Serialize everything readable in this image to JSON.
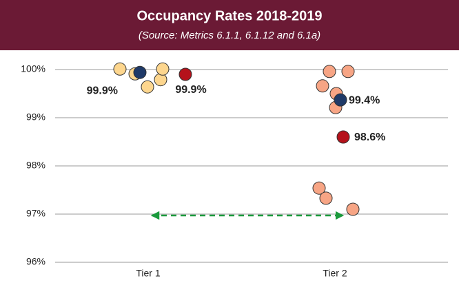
{
  "chart_data": {
    "type": "strip",
    "title": "Occupancy Rates 2018-2019",
    "subtitle": "(Source: Metrics 6.1.1, 6.1.12 and 6.1a)",
    "categories": [
      "Tier 1",
      "Tier 2"
    ],
    "series": [
      {
        "colors": [
          "#fdd68e",
          "#f7a585"
        ],
        "values": [
          [
            100.01,
            99.91,
            99.64,
            99.79,
            100.01
          ],
          [
            99.96,
            99.96,
            99.66,
            99.5,
            99.21,
            97.54,
            97.33,
            97.1
          ]
        ]
      },
      {
        "color": "#1f3a68",
        "values": [
          99.94,
          99.37
        ],
        "value_labels": [
          "99.9%",
          "99.4%"
        ]
      },
      {
        "color": "#b5121b",
        "values": [
          99.9,
          98.6
        ],
        "value_labels": [
          "99.9%",
          "98.6%"
        ]
      }
    ],
    "ylim": [
      96,
      100.2
    ],
    "yticks": [
      {
        "value": 96,
        "label": "96%"
      },
      {
        "value": 97,
        "label": "97%"
      },
      {
        "value": 98,
        "label": "98%"
      },
      {
        "value": 99,
        "label": "99%"
      },
      {
        "value": 100,
        "label": "100%"
      }
    ],
    "grid": true
  }
}
